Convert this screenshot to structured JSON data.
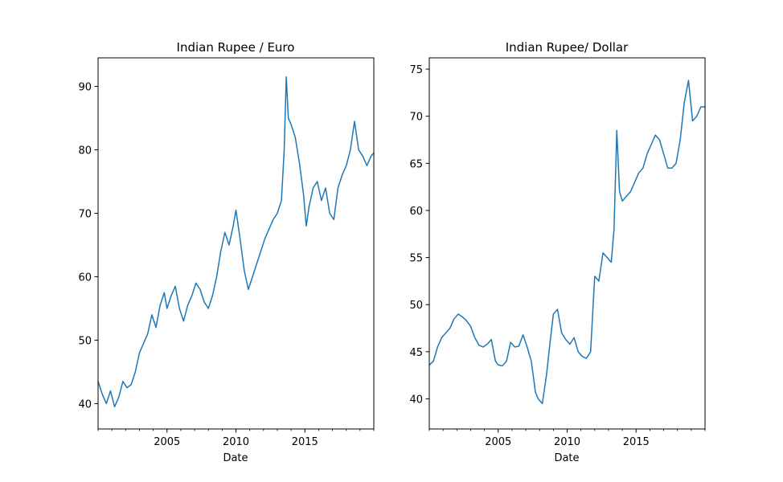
{
  "figure": {
    "panels": [
      {
        "title": "Indian Rupee / Euro",
        "xlabel": "Date"
      },
      {
        "title": "Indian Rupee/ Dollar",
        "xlabel": "Date"
      }
    ],
    "colors": {
      "series": "#1f77b4",
      "axes": "#000000",
      "background": "#ffffff"
    }
  },
  "chart_data": [
    {
      "type": "line",
      "title": "Indian Rupee / Euro",
      "xlabel": "Date",
      "ylabel": "",
      "xlim": [
        2000.0,
        2020.0
      ],
      "ylim": [
        36.0,
        94.5
      ],
      "xticks": [
        2005,
        2010,
        2015
      ],
      "xtick_labels": [
        "2005",
        "2010",
        "2015"
      ],
      "yticks": [
        40,
        50,
        60,
        70,
        80,
        90
      ],
      "ytick_labels": [
        "40",
        "50",
        "60",
        "70",
        "80",
        "90"
      ],
      "grid": false,
      "legend": "none",
      "series": [
        {
          "color": "#1f77b4",
          "x": [
            2000.0,
            2000.3,
            2000.6,
            2000.9,
            2001.2,
            2001.5,
            2001.8,
            2002.1,
            2002.4,
            2002.7,
            2003.0,
            2003.3,
            2003.6,
            2003.9,
            2004.2,
            2004.5,
            2004.8,
            2005.0,
            2005.3,
            2005.6,
            2005.9,
            2006.2,
            2006.5,
            2006.8,
            2007.1,
            2007.4,
            2007.7,
            2008.0,
            2008.3,
            2008.6,
            2008.9,
            2009.2,
            2009.5,
            2009.8,
            2010.0,
            2010.3,
            2010.6,
            2010.9,
            2011.2,
            2011.5,
            2011.8,
            2012.1,
            2012.4,
            2012.7,
            2013.0,
            2013.3,
            2013.5,
            2013.65,
            2013.8,
            2014.0,
            2014.3,
            2014.6,
            2014.9,
            2015.1,
            2015.3,
            2015.6,
            2015.9,
            2016.2,
            2016.5,
            2016.8,
            2017.1,
            2017.4,
            2017.7,
            2018.0,
            2018.3,
            2018.6,
            2018.9,
            2019.2,
            2019.5,
            2019.8,
            2020.0
          ],
          "y": [
            43.5,
            41.5,
            40.0,
            42.0,
            39.5,
            41.0,
            43.5,
            42.5,
            43.0,
            45.0,
            48.0,
            49.5,
            51.0,
            54.0,
            52.0,
            55.5,
            57.5,
            55.0,
            57.0,
            58.5,
            55.0,
            53.0,
            55.5,
            57.0,
            59.0,
            58.0,
            56.0,
            55.0,
            57.0,
            60.0,
            64.0,
            67.0,
            65.0,
            68.0,
            70.5,
            66.0,
            61.0,
            58.0,
            60.0,
            62.0,
            64.0,
            66.0,
            67.5,
            69.0,
            70.0,
            72.0,
            80.0,
            91.5,
            85.0,
            84.0,
            82.0,
            78.0,
            73.0,
            68.0,
            71.0,
            74.0,
            75.0,
            72.0,
            74.0,
            70.0,
            69.0,
            74.0,
            76.0,
            77.5,
            80.0,
            84.5,
            80.0,
            79.0,
            77.5,
            79.0,
            79.5
          ]
        }
      ]
    },
    {
      "type": "line",
      "title": "Indian Rupee/ Dollar",
      "xlabel": "Date",
      "ylabel": "",
      "xlim": [
        2000.0,
        2020.0
      ],
      "ylim": [
        36.8,
        76.2
      ],
      "xticks": [
        2005,
        2010,
        2015
      ],
      "xtick_labels": [
        "2005",
        "2010",
        "2015"
      ],
      "yticks": [
        40,
        45,
        50,
        55,
        60,
        65,
        70,
        75
      ],
      "ytick_labels": [
        "40",
        "45",
        "50",
        "55",
        "60",
        "65",
        "70",
        "75"
      ],
      "grid": false,
      "legend": "none",
      "series": [
        {
          "color": "#1f77b4",
          "x": [
            2000.0,
            2000.3,
            2000.6,
            2000.9,
            2001.2,
            2001.5,
            2001.8,
            2002.1,
            2002.4,
            2002.7,
            2003.0,
            2003.3,
            2003.6,
            2003.9,
            2004.2,
            2004.5,
            2004.8,
            2005.0,
            2005.3,
            2005.6,
            2005.9,
            2006.2,
            2006.5,
            2006.8,
            2007.1,
            2007.4,
            2007.7,
            2007.9,
            2008.2,
            2008.5,
            2008.8,
            2009.0,
            2009.3,
            2009.6,
            2009.9,
            2010.2,
            2010.5,
            2010.8,
            2011.1,
            2011.4,
            2011.7,
            2012.0,
            2012.3,
            2012.6,
            2012.9,
            2013.2,
            2013.4,
            2013.6,
            2013.8,
            2014.0,
            2014.3,
            2014.6,
            2014.9,
            2015.2,
            2015.5,
            2015.8,
            2016.1,
            2016.4,
            2016.7,
            2017.0,
            2017.3,
            2017.6,
            2017.9,
            2018.2,
            2018.5,
            2018.8,
            2019.1,
            2019.4,
            2019.7,
            2020.0
          ],
          "y": [
            43.6,
            44.0,
            45.5,
            46.5,
            47.0,
            47.5,
            48.5,
            49.0,
            48.7,
            48.3,
            47.7,
            46.5,
            45.7,
            45.5,
            45.8,
            46.3,
            44.0,
            43.6,
            43.5,
            44.0,
            46.0,
            45.5,
            45.6,
            46.8,
            45.5,
            44.0,
            40.7,
            40.0,
            39.5,
            42.5,
            46.5,
            49.0,
            49.5,
            47.0,
            46.3,
            45.8,
            46.5,
            45.0,
            44.5,
            44.3,
            45.0,
            53.0,
            52.5,
            55.5,
            55.0,
            54.5,
            58.0,
            68.5,
            62.0,
            61.0,
            61.5,
            62.0,
            63.0,
            64.0,
            64.5,
            66.0,
            67.0,
            68.0,
            67.5,
            66.0,
            64.5,
            64.5,
            65.0,
            67.5,
            71.5,
            73.8,
            69.5,
            70.0,
            71.0,
            71.0
          ]
        }
      ]
    }
  ]
}
